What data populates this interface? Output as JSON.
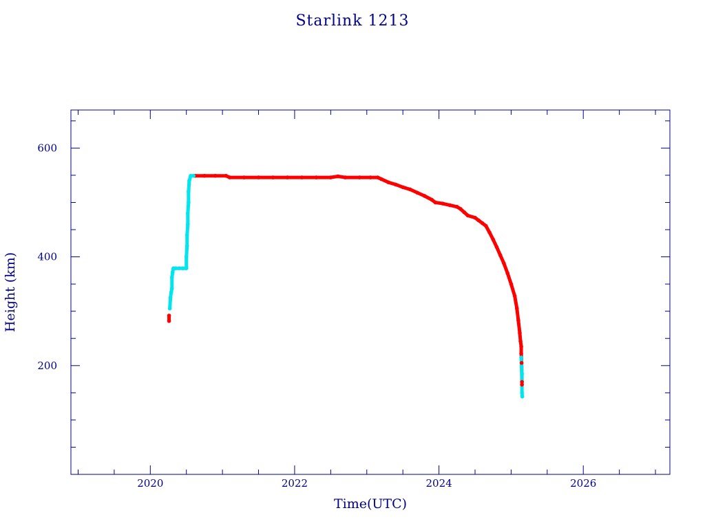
{
  "chart_data": {
    "type": "scatter",
    "title": "Starlink 1213",
    "xlabel": "Time(UTC)",
    "ylabel": "Height (km)",
    "xlim": [
      2018.9,
      2027.2
    ],
    "ylim": [
      0,
      670
    ],
    "x_ticks": [
      2020,
      2022,
      2024,
      2026
    ],
    "y_ticks": [
      200,
      400,
      600
    ],
    "grid": false,
    "legend": "none",
    "axis_color": "#00008b",
    "series": [
      {
        "color": "#ff0000",
        "points": [
          [
            2020.26,
            282
          ],
          [
            2020.26,
            292
          ],
          [
            2020.62,
            549
          ],
          [
            2020.75,
            549
          ],
          [
            2020.9,
            549
          ],
          [
            2021.05,
            549
          ],
          [
            2021.1,
            546
          ],
          [
            2021.3,
            546
          ],
          [
            2021.5,
            546
          ],
          [
            2021.7,
            546
          ],
          [
            2021.9,
            546
          ],
          [
            2022.1,
            546
          ],
          [
            2022.3,
            546
          ],
          [
            2022.5,
            546
          ],
          [
            2022.6,
            548
          ],
          [
            2022.7,
            546
          ],
          [
            2022.9,
            546
          ],
          [
            2023.05,
            546
          ],
          [
            2023.15,
            546
          ],
          [
            2023.2,
            543
          ],
          [
            2023.3,
            537
          ],
          [
            2023.4,
            533
          ],
          [
            2023.5,
            528
          ],
          [
            2023.6,
            524
          ],
          [
            2023.7,
            518
          ],
          [
            2023.8,
            512
          ],
          [
            2023.9,
            505
          ],
          [
            2023.95,
            500
          ],
          [
            2024.05,
            498
          ],
          [
            2024.15,
            495
          ],
          [
            2024.25,
            492
          ],
          [
            2024.3,
            488
          ],
          [
            2024.35,
            482
          ],
          [
            2024.4,
            476
          ],
          [
            2024.5,
            472
          ],
          [
            2024.55,
            467
          ],
          [
            2024.6,
            462
          ],
          [
            2024.65,
            457
          ],
          [
            2024.7,
            445
          ],
          [
            2024.75,
            432
          ],
          [
            2024.8,
            418
          ],
          [
            2024.85,
            403
          ],
          [
            2024.9,
            388
          ],
          [
            2024.95,
            370
          ],
          [
            2025.0,
            350
          ],
          [
            2025.05,
            328
          ],
          [
            2025.08,
            305
          ],
          [
            2025.1,
            283
          ],
          [
            2025.12,
            260
          ],
          [
            2025.13,
            245
          ],
          [
            2025.14,
            235
          ],
          [
            2025.14,
            222
          ],
          [
            2025.145,
            205
          ],
          [
            2025.15,
            170
          ],
          [
            2025.15,
            165
          ]
        ]
      },
      {
        "color": "#00e5ee",
        "points": [
          [
            2020.27,
            305
          ],
          [
            2020.28,
            325
          ],
          [
            2020.29,
            335
          ],
          [
            2020.3,
            342
          ],
          [
            2020.3,
            362
          ],
          [
            2020.31,
            372
          ],
          [
            2020.32,
            379
          ],
          [
            2020.35,
            379
          ],
          [
            2020.4,
            379
          ],
          [
            2020.45,
            379
          ],
          [
            2020.5,
            379
          ],
          [
            2020.5,
            400
          ],
          [
            2020.51,
            420
          ],
          [
            2020.51,
            440
          ],
          [
            2020.52,
            460
          ],
          [
            2020.52,
            480
          ],
          [
            2020.53,
            500
          ],
          [
            2020.53,
            520
          ],
          [
            2020.54,
            540
          ],
          [
            2020.56,
            549
          ],
          [
            2020.6,
            549
          ],
          [
            2025.14,
            215
          ],
          [
            2025.145,
            198
          ],
          [
            2025.15,
            185
          ],
          [
            2025.15,
            150
          ],
          [
            2025.155,
            143
          ]
        ]
      }
    ]
  }
}
